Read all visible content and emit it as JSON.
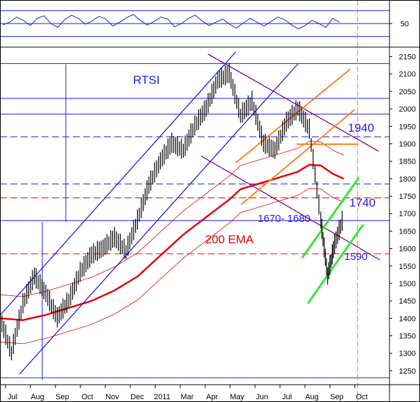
{
  "chart_data": [
    {
      "type": "line",
      "series": [
        {
          "values": [
            48,
            52,
            60,
            55,
            47,
            58,
            62,
            50,
            44,
            56,
            63,
            58,
            49,
            54,
            61,
            57,
            46,
            52,
            59,
            64,
            55,
            48,
            53,
            60,
            57,
            45,
            50,
            58,
            63,
            54,
            47,
            52,
            57,
            49,
            43,
            51,
            58,
            52,
            46,
            53,
            60,
            56,
            48,
            42,
            47,
            55,
            50,
            44,
            58,
            52
          ]
        }
      ],
      "y_ticks": [
        50
      ],
      "x_range": [
        0,
        49
      ],
      "guide_levels": [
        30,
        70
      ]
    },
    {
      "type": "line",
      "series": [
        {
          "name": "RTSI",
          "x": [
            0,
            0.5,
            1,
            1.5,
            2,
            2.5,
            3,
            3.5,
            4,
            4.5,
            5,
            5.5,
            6,
            6.5,
            7,
            7.5,
            8,
            8.5,
            9,
            9.5,
            10,
            10.5,
            11,
            11.5,
            12,
            12.5,
            13,
            13.5,
            14,
            14.3,
            14.6,
            15
          ],
          "y": [
            1400,
            1300,
            1440,
            1520,
            1470,
            1400,
            1450,
            1530,
            1580,
            1600,
            1630,
            1590,
            1680,
            1780,
            1850,
            1900,
            1880,
            1950,
            2000,
            2080,
            2100,
            1980,
            2020,
            1900,
            1880,
            1960,
            2000,
            1940,
            1680,
            1520,
            1610,
            1690
          ]
        },
        {
          "name": "200 EMA",
          "x": [
            0,
            1,
            2,
            3,
            4,
            5,
            6,
            7,
            8,
            9,
            10,
            10.5,
            11,
            12,
            13,
            13.5,
            14,
            14.5,
            15
          ],
          "y": [
            1400,
            1395,
            1410,
            1430,
            1450,
            1480,
            1520,
            1580,
            1640,
            1690,
            1740,
            1770,
            1780,
            1800,
            1820,
            1840,
            1838,
            1815,
            1800
          ]
        }
      ],
      "annotations": [
        {
          "text": "RTSI",
          "color": "#1a1ae6"
        },
        {
          "text": "200 EMA",
          "color": "#e60000"
        },
        {
          "text": "1940",
          "color": "#1a1ae6"
        },
        {
          "text": "1740",
          "color": "#1a1ae6"
        },
        {
          "text": "1670- 1680",
          "color": "#1a1ae6"
        },
        {
          "text": "1590",
          "color": "#1a1ae6"
        }
      ],
      "x_ticks": [
        "Jul",
        "Aug",
        "Sep",
        "Oct",
        "Nov",
        "Dec",
        "2011",
        "Mar",
        "Apr",
        "May",
        "Jun",
        "Jul",
        "Aug",
        "Sep",
        "Oct"
      ],
      "y_ticks": [
        1250,
        1300,
        1350,
        1400,
        1450,
        1500,
        1550,
        1600,
        1650,
        1700,
        1750,
        1800,
        1850,
        1900,
        1950,
        2000,
        2050,
        2100,
        2150
      ],
      "ylim": [
        1220,
        2165
      ],
      "xlim": [
        0,
        17
      ],
      "horizontal_levels": [
        {
          "value": 2130,
          "color": "#1a1ae6",
          "style": "solid"
        },
        {
          "value": 2030,
          "color": "#1a1ae6",
          "style": "solid"
        },
        {
          "value": 1985,
          "color": "#1a1ae6",
          "style": "solid"
        },
        {
          "value": 1920,
          "color": "#1a1ae6",
          "style": "dashed"
        },
        {
          "value": 1785,
          "color": "#1a1ae6",
          "style": "dashed"
        },
        {
          "value": 1745,
          "color": "#e60000",
          "style": "dashed"
        },
        {
          "value": 1680,
          "color": "#1a1ae6",
          "style": "solid"
        },
        {
          "value": 1585,
          "color": "#e60000",
          "style": "dashed"
        },
        {
          "value": 1230,
          "color": "#1a1ae6",
          "style": "solid"
        }
      ],
      "vertical_marker": {
        "x": 15.6,
        "color": "#e69050",
        "style": "dashed"
      },
      "grid": false,
      "colors": {
        "price": "#000000",
        "ema": "#e60000",
        "bands": "#e60000",
        "channel_blue": "#1a1ae6",
        "channel_purple": "#800080",
        "channel_orange": "#ff8020",
        "channel_green": "#33e633"
      }
    }
  ]
}
